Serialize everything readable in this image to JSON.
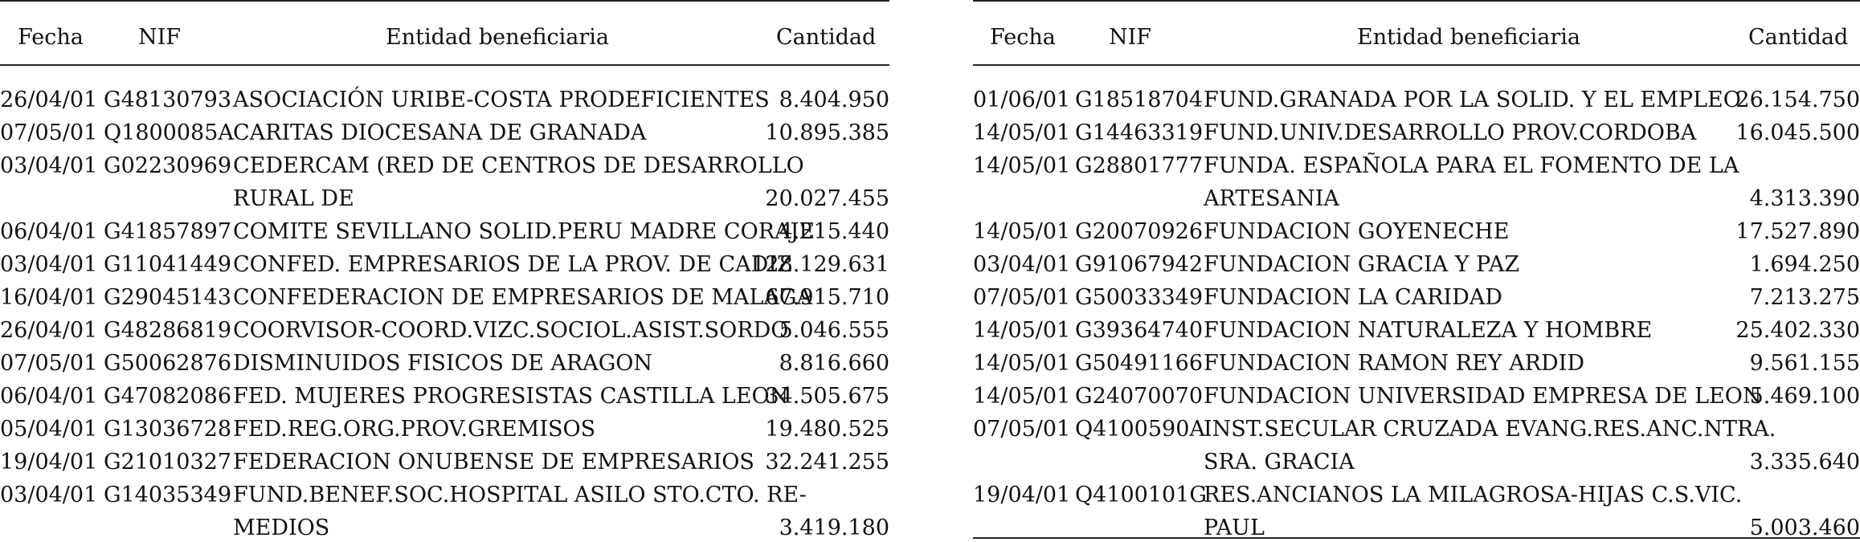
{
  "headers": {
    "fecha": "Fecha",
    "nif": "NIF",
    "entidad": "Entidad beneficiaria",
    "cantidad": "Cantidad"
  },
  "left": [
    {
      "fecha": "26/04/01",
      "nif": "G48130793",
      "entidad": "ASOCIACIÓN URIBE-COSTA PRODEFICIENTES",
      "entidad2": "",
      "cantidad": "8.404.950"
    },
    {
      "fecha": "07/05/01",
      "nif": "Q1800085A",
      "entidad": "CARITAS DIOCESANA DE GRANADA",
      "entidad2": "",
      "cantidad": "10.895.385"
    },
    {
      "fecha": "03/04/01",
      "nif": "G02230969",
      "entidad": "CEDERCAM (RED DE CENTROS DE DESARROLLO",
      "entidad2": "RURAL DE",
      "cantidad": "20.027.455"
    },
    {
      "fecha": "06/04/01",
      "nif": "G41857897",
      "entidad": "COMITE SEVILLANO SOLID.PERU MADRE CORAJE",
      "entidad2": "",
      "cantidad": "4.215.440"
    },
    {
      "fecha": "03/04/01",
      "nif": "G11041449",
      "entidad": "CONFED. EMPRESARIOS DE LA PROV. DE CADIZ",
      "entidad2": "",
      "cantidad": "128.129.631"
    },
    {
      "fecha": "16/04/01",
      "nif": "G29045143",
      "entidad": "CONFEDERACION DE EMPRESARIOS DE MALAGA",
      "entidad2": "",
      "cantidad": "67.915.710"
    },
    {
      "fecha": "26/04/01",
      "nif": "G48286819",
      "entidad": "COORVISOR-COORD.VIZC.SOCIOL.ASIST.SORDO",
      "entidad2": "",
      "cantidad": "5.046.555"
    },
    {
      "fecha": "07/05/01",
      "nif": "G50062876",
      "entidad": "DISMINUIDOS FISICOS DE ARAGON",
      "entidad2": "",
      "cantidad": "8.816.660"
    },
    {
      "fecha": "06/04/01",
      "nif": "G47082086",
      "entidad": "FED. MUJERES PROGRESISTAS CASTILLA LEON",
      "entidad2": "",
      "cantidad": "34.505.675"
    },
    {
      "fecha": "05/04/01",
      "nif": "G13036728",
      "entidad": "FED.REG.ORG.PROV.GREMISOS",
      "entidad2": "",
      "cantidad": "19.480.525"
    },
    {
      "fecha": "19/04/01",
      "nif": "G21010327",
      "entidad": "FEDERACION ONUBENSE DE EMPRESARIOS",
      "entidad2": "",
      "cantidad": "32.241.255"
    },
    {
      "fecha": "03/04/01",
      "nif": "G14035349",
      "entidad": "FUND.BENEF.SOC.HOSPITAL ASILO STO.CTO. RE-",
      "entidad2": "MEDIOS",
      "cantidad": "3.419.180"
    }
  ],
  "right": [
    {
      "fecha": "01/06/01",
      "nif": "G18518704",
      "entidad": "FUND.GRANADA POR LA SOLID. Y EL EMPLEO",
      "entidad2": "",
      "cantidad": "26.154.750"
    },
    {
      "fecha": "14/05/01",
      "nif": "G14463319",
      "entidad": "FUND.UNIV.DESARROLLO PROV.CORDOBA",
      "entidad2": "",
      "cantidad": "16.045.500"
    },
    {
      "fecha": "14/05/01",
      "nif": "G28801777",
      "entidad": "FUNDA. ESPAÑOLA PARA EL FOMENTO DE LA",
      "entidad2": "ARTESANIA",
      "cantidad": "4.313.390"
    },
    {
      "fecha": "14/05/01",
      "nif": "G20070926",
      "entidad": "FUNDACION GOYENECHE",
      "entidad2": "",
      "cantidad": "17.527.890"
    },
    {
      "fecha": "03/04/01",
      "nif": "G91067942",
      "entidad": "FUNDACION GRACIA Y PAZ",
      "entidad2": "",
      "cantidad": "1.694.250"
    },
    {
      "fecha": "07/05/01",
      "nif": "G50033349",
      "entidad": "FUNDACION LA CARIDAD",
      "entidad2": "",
      "cantidad": "7.213.275"
    },
    {
      "fecha": "14/05/01",
      "nif": "G39364740",
      "entidad": "FUNDACION NATURALEZA Y HOMBRE",
      "entidad2": "",
      "cantidad": "25.402.330"
    },
    {
      "fecha": "14/05/01",
      "nif": "G50491166",
      "entidad": "FUNDACION RAMON REY ARDID",
      "entidad2": "",
      "cantidad": "9.561.155"
    },
    {
      "fecha": "14/05/01",
      "nif": "G24070070",
      "entidad": "FUNDACION UNIVERSIDAD EMPRESA DE LEON",
      "entidad2": "",
      "cantidad": "5.469.100"
    },
    {
      "fecha": "07/05/01",
      "nif": "Q4100590A",
      "entidad": "INST.SECULAR CRUZADA EVANG.RES.ANC.NTRA.",
      "entidad2": "SRA. GRACIA",
      "cantidad": "3.335.640"
    },
    {
      "fecha": "19/04/01",
      "nif": "Q4100101G",
      "entidad": "RES.ANCIANOS LA MILAGROSA-HIJAS C.S.VIC.",
      "entidad2": "PAUL",
      "cantidad": "5.003.460"
    }
  ]
}
